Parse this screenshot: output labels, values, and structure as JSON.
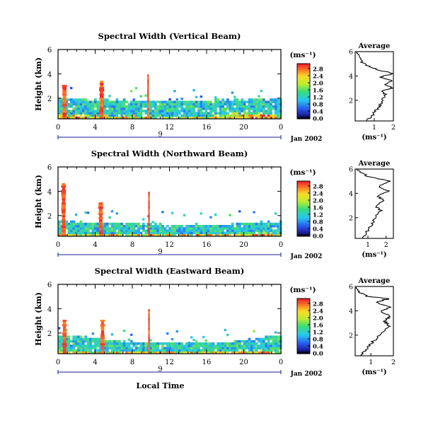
{
  "figure": {
    "date_label": "Jan 2002",
    "day_label": "9",
    "xlabel": "Local Time",
    "ylabel": "Height (km)",
    "colorbar_unit": "(ms⁻¹)",
    "avg_title": "Average",
    "avg_xlabel": "(ms⁻¹)"
  },
  "chart_data": [
    {
      "type": "heatmap",
      "title": "Spectral Width (Vertical Beam)",
      "xlabel": "Local Time",
      "ylabel": "Height (km)",
      "x_ticks": [
        "0",
        "4",
        "8",
        "12",
        "16",
        "20",
        "0"
      ],
      "y_ticks": [
        "2",
        "4",
        "6"
      ],
      "xlim": [
        0,
        24
      ],
      "ylim": [
        0.3,
        6
      ],
      "colorbar": {
        "label": "(ms⁻¹)",
        "ticks": [
          "0.0",
          "0.4",
          "0.8",
          "1.2",
          "1.6",
          "2.0",
          "2.4",
          "2.8"
        ]
      },
      "main_layer_top_km": [
        1.9,
        1.85,
        1.8,
        1.8,
        1.75,
        1.7,
        1.7,
        1.7,
        1.75,
        1.8,
        1.8,
        1.85,
        1.85
      ],
      "spikes_hours": [
        0.7,
        4.7,
        9.7
      ],
      "average": {
        "xlim": [
          0,
          2
        ],
        "x_ticks": [
          "1",
          "2"
        ],
        "y_ticks": [
          "2",
          "4",
          "6"
        ],
        "profile": [
          [
            0.6,
            0.3
          ],
          [
            0.9,
            0.8
          ],
          [
            1.1,
            1.2
          ],
          [
            1.3,
            1.6
          ],
          [
            1.45,
            2.0
          ],
          [
            1.55,
            2.5
          ],
          [
            1.4,
            2.8
          ],
          [
            2.0,
            3.0
          ],
          [
            1.5,
            3.3
          ],
          [
            2.0,
            3.6
          ],
          [
            1.3,
            3.9
          ],
          [
            2.0,
            4.2
          ],
          [
            1.2,
            4.5
          ],
          [
            0.7,
            4.8
          ],
          [
            0.3,
            5.2
          ],
          [
            0.15,
            5.7
          ],
          [
            0.1,
            6.0
          ]
        ]
      }
    },
    {
      "type": "heatmap",
      "title": "Spectral Width (Northward Beam)",
      "xlabel": "Local Time",
      "ylabel": "Height (km)",
      "x_ticks": [
        "0",
        "4",
        "8",
        "12",
        "16",
        "20",
        "0"
      ],
      "y_ticks": [
        "2",
        "4",
        "6"
      ],
      "xlim": [
        0,
        24
      ],
      "ylim": [
        0.3,
        6
      ],
      "colorbar": {
        "label": "(ms⁻¹)",
        "ticks": [
          "0.0",
          "0.4",
          "0.8",
          "1.2",
          "1.6",
          "2.0",
          "2.4",
          "2.8"
        ]
      },
      "main_layer_top_km": [
        1.5,
        1.4,
        1.35,
        1.3,
        1.25,
        1.2,
        1.15,
        1.15,
        1.2,
        1.2,
        1.3,
        1.4,
        1.4
      ],
      "spikes_hours": [
        0.6,
        4.6,
        9.8
      ],
      "average": {
        "xlim": [
          0.3,
          2.4
        ],
        "x_ticks": [
          "1",
          "2"
        ],
        "y_ticks": [
          "2",
          "4",
          "6"
        ],
        "profile": [
          [
            0.7,
            0.3
          ],
          [
            0.9,
            0.8
          ],
          [
            1.1,
            1.2
          ],
          [
            1.3,
            1.7
          ],
          [
            1.5,
            2.2
          ],
          [
            1.7,
            2.6
          ],
          [
            1.4,
            3.0
          ],
          [
            1.9,
            3.4
          ],
          [
            1.5,
            3.8
          ],
          [
            2.1,
            4.2
          ],
          [
            1.6,
            4.6
          ],
          [
            2.2,
            5.0
          ],
          [
            1.0,
            5.4
          ],
          [
            0.5,
            5.8
          ],
          [
            0.35,
            6.0
          ]
        ]
      }
    },
    {
      "type": "heatmap",
      "title": "Spectral Width (Eastward Beam)",
      "xlabel": "Local Time",
      "ylabel": "Height (km)",
      "x_ticks": [
        "0",
        "4",
        "8",
        "12",
        "16",
        "20",
        "0"
      ],
      "y_ticks": [
        "2",
        "4",
        "6"
      ],
      "xlim": [
        0,
        24
      ],
      "ylim": [
        0.3,
        6
      ],
      "colorbar": {
        "label": "(ms⁻¹)",
        "ticks": [
          "0.0",
          "0.4",
          "0.8",
          "1.2",
          "1.6",
          "2.0",
          "2.4",
          "2.8"
        ]
      },
      "main_layer_top_km": [
        1.8,
        1.7,
        1.5,
        1.3,
        1.2,
        1.2,
        1.1,
        1.1,
        1.2,
        1.2,
        1.3,
        1.6,
        1.7
      ],
      "spikes_hours": [
        0.7,
        4.8,
        9.8
      ],
      "average": {
        "xlim": [
          0.3,
          2
        ],
        "x_ticks": [
          "1",
          "2"
        ],
        "y_ticks": [
          "2",
          "4",
          "6"
        ],
        "profile": [
          [
            0.5,
            0.3
          ],
          [
            0.8,
            0.8
          ],
          [
            1.0,
            1.3
          ],
          [
            1.3,
            1.8
          ],
          [
            1.6,
            2.4
          ],
          [
            1.8,
            2.8
          ],
          [
            1.6,
            3.2
          ],
          [
            1.9,
            3.6
          ],
          [
            1.4,
            4.0
          ],
          [
            1.9,
            4.3
          ],
          [
            1.2,
            4.7
          ],
          [
            1.8,
            5.0
          ],
          [
            0.8,
            5.2
          ],
          [
            0.4,
            5.6
          ],
          [
            0.3,
            6.0
          ]
        ]
      }
    }
  ]
}
